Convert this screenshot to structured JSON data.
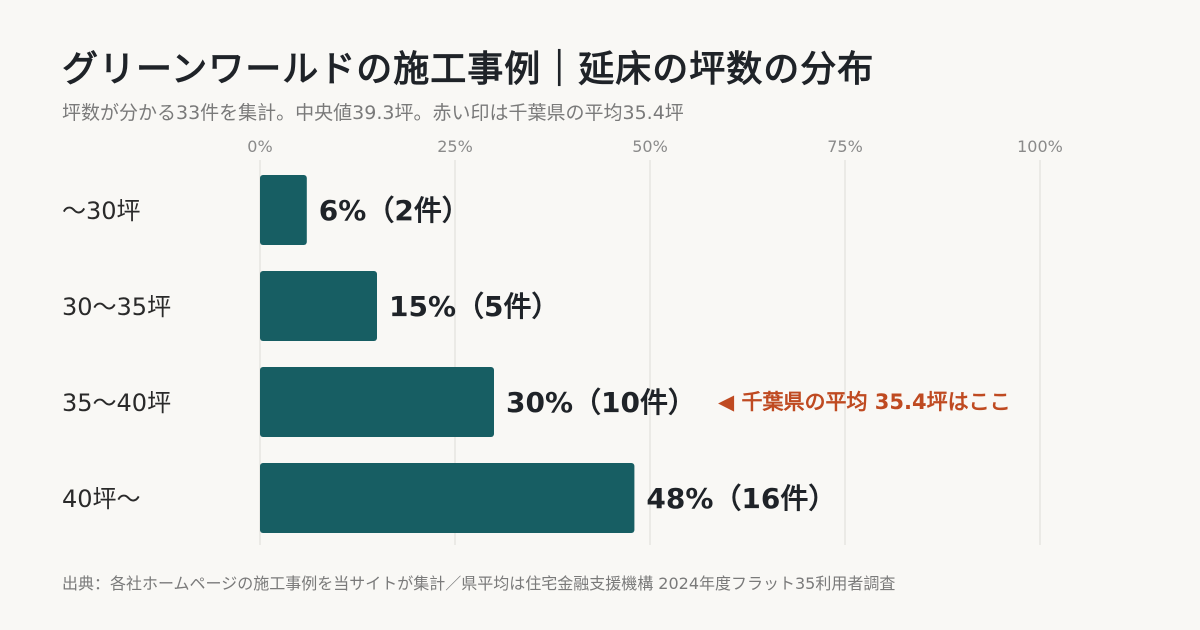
{
  "header": {
    "title": "グリーンワールドの施工事例｜延床の坪数の分布",
    "subtitle": "坪数が分かる33件を集計。中央値39.3坪。赤い印は千葉県の平均35.4坪"
  },
  "footer": {
    "source": "出典：各社ホームページの施工事例を当サイトが集計／県平均は住宅金融支援機構 2024年度フラット35利用者調査"
  },
  "colors": {
    "bar": "#175e63",
    "annotation": "#bf4a21",
    "grid": "#dddbd6"
  },
  "chart_data": {
    "type": "bar",
    "orientation": "horizontal",
    "categories": [
      "〜30坪",
      "30〜35坪",
      "35〜40坪",
      "40坪〜"
    ],
    "values": [
      6,
      15,
      30,
      48
    ],
    "counts": [
      2,
      5,
      10,
      16
    ],
    "value_labels": [
      "6%（2件）",
      "15%（5件）",
      "30%（10件）",
      "48%（16件）"
    ],
    "xlim": [
      0,
      100
    ],
    "xticks": [
      0,
      25,
      50,
      75,
      100
    ],
    "xtick_labels": [
      "0%",
      "25%",
      "50%",
      "75%",
      "100%"
    ],
    "grid": true,
    "annotation": {
      "category_index": 2,
      "text": "◀ 千葉県の平均 35.4坪はここ"
    }
  }
}
